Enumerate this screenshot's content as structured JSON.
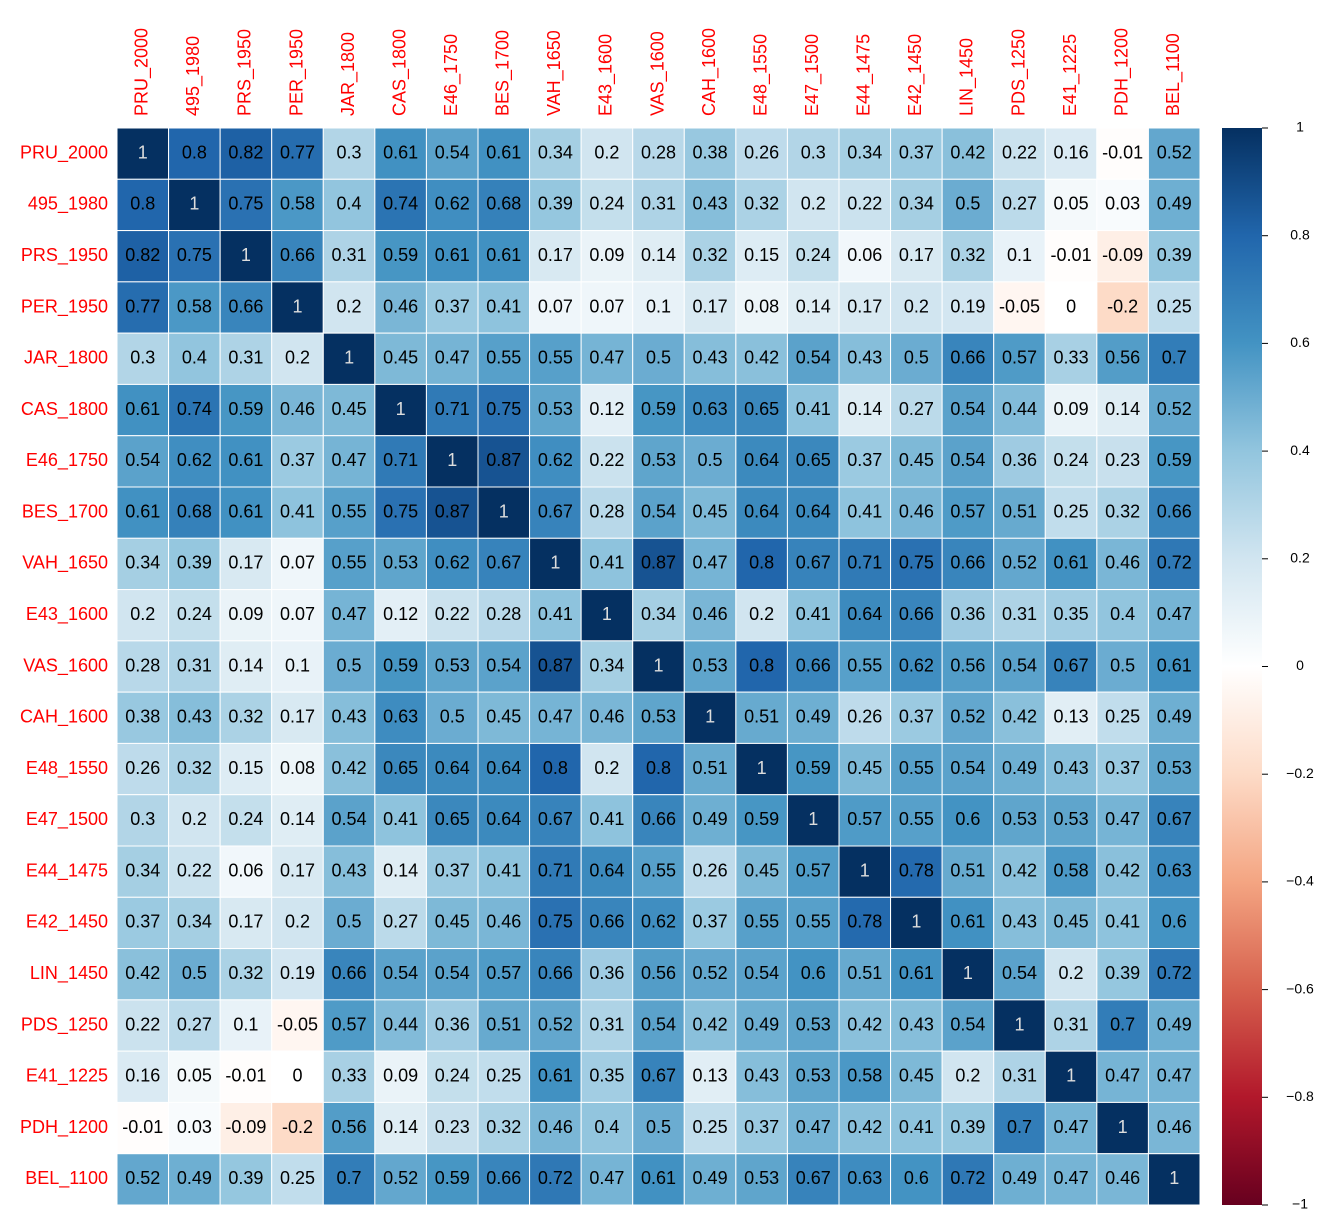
{
  "chart_data": {
    "type": "heatmap",
    "labels": [
      "PRU_2000",
      "495_1980",
      "PRS_1950",
      "PER_1950",
      "JAR_1800",
      "CAS_1800",
      "E46_1750",
      "BES_1700",
      "VAH_1650",
      "E43_1600",
      "VAS_1600",
      "CAH_1600",
      "E48_1550",
      "E47_1500",
      "E44_1475",
      "E42_1450",
      "LIN_1450",
      "PDS_1250",
      "E41_1225",
      "PDH_1200",
      "BEL_1100"
    ],
    "label_color": "#ff0000",
    "values": [
      [
        1,
        0.8,
        0.82,
        0.77,
        0.3,
        0.61,
        0.54,
        0.61,
        0.34,
        0.2,
        0.28,
        0.38,
        0.26,
        0.3,
        0.34,
        0.37,
        0.42,
        0.22,
        0.16,
        -0.01,
        0.52
      ],
      [
        0.8,
        1,
        0.75,
        0.58,
        0.4,
        0.74,
        0.62,
        0.68,
        0.39,
        0.24,
        0.31,
        0.43,
        0.32,
        0.2,
        0.22,
        0.34,
        0.5,
        0.27,
        0.05,
        0.03,
        0.49
      ],
      [
        0.82,
        0.75,
        1,
        0.66,
        0.31,
        0.59,
        0.61,
        0.61,
        0.17,
        0.09,
        0.14,
        0.32,
        0.15,
        0.24,
        0.06,
        0.17,
        0.32,
        0.1,
        -0.01,
        -0.09,
        0.39
      ],
      [
        0.77,
        0.58,
        0.66,
        1,
        0.2,
        0.46,
        0.37,
        0.41,
        0.07,
        0.07,
        0.1,
        0.17,
        0.08,
        0.14,
        0.17,
        0.2,
        0.19,
        -0.05,
        0,
        -0.2,
        0.25
      ],
      [
        0.3,
        0.4,
        0.31,
        0.2,
        1,
        0.45,
        0.47,
        0.55,
        0.55,
        0.47,
        0.5,
        0.43,
        0.42,
        0.54,
        0.43,
        0.5,
        0.66,
        0.57,
        0.33,
        0.56,
        0.7
      ],
      [
        0.61,
        0.74,
        0.59,
        0.46,
        0.45,
        1,
        0.71,
        0.75,
        0.53,
        0.12,
        0.59,
        0.63,
        0.65,
        0.41,
        0.14,
        0.27,
        0.54,
        0.44,
        0.09,
        0.14,
        0.52
      ],
      [
        0.54,
        0.62,
        0.61,
        0.37,
        0.47,
        0.71,
        1,
        0.87,
        0.62,
        0.22,
        0.53,
        0.5,
        0.64,
        0.65,
        0.37,
        0.45,
        0.54,
        0.36,
        0.24,
        0.23,
        0.59
      ],
      [
        0.61,
        0.68,
        0.61,
        0.41,
        0.55,
        0.75,
        0.87,
        1,
        0.67,
        0.28,
        0.54,
        0.45,
        0.64,
        0.64,
        0.41,
        0.46,
        0.57,
        0.51,
        0.25,
        0.32,
        0.66
      ],
      [
        0.34,
        0.39,
        0.17,
        0.07,
        0.55,
        0.53,
        0.62,
        0.67,
        1,
        0.41,
        0.87,
        0.47,
        0.8,
        0.67,
        0.71,
        0.75,
        0.66,
        0.52,
        0.61,
        0.46,
        0.72
      ],
      [
        0.2,
        0.24,
        0.09,
        0.07,
        0.47,
        0.12,
        0.22,
        0.28,
        0.41,
        1,
        0.34,
        0.46,
        0.2,
        0.41,
        0.64,
        0.66,
        0.36,
        0.31,
        0.35,
        0.4,
        0.47
      ],
      [
        0.28,
        0.31,
        0.14,
        0.1,
        0.5,
        0.59,
        0.53,
        0.54,
        0.87,
        0.34,
        1,
        0.53,
        0.8,
        0.66,
        0.55,
        0.62,
        0.56,
        0.54,
        0.67,
        0.5,
        0.61
      ],
      [
        0.38,
        0.43,
        0.32,
        0.17,
        0.43,
        0.63,
        0.5,
        0.45,
        0.47,
        0.46,
        0.53,
        1,
        0.51,
        0.49,
        0.26,
        0.37,
        0.52,
        0.42,
        0.13,
        0.25,
        0.49
      ],
      [
        0.26,
        0.32,
        0.15,
        0.08,
        0.42,
        0.65,
        0.64,
        0.64,
        0.8,
        0.2,
        0.8,
        0.51,
        1,
        0.59,
        0.45,
        0.55,
        0.54,
        0.49,
        0.43,
        0.37,
        0.53
      ],
      [
        0.3,
        0.2,
        0.24,
        0.14,
        0.54,
        0.41,
        0.65,
        0.64,
        0.67,
        0.41,
        0.66,
        0.49,
        0.59,
        1,
        0.57,
        0.55,
        0.6,
        0.53,
        0.53,
        0.47,
        0.67
      ],
      [
        0.34,
        0.22,
        0.06,
        0.17,
        0.43,
        0.14,
        0.37,
        0.41,
        0.71,
        0.64,
        0.55,
        0.26,
        0.45,
        0.57,
        1,
        0.78,
        0.51,
        0.42,
        0.58,
        0.42,
        0.63
      ],
      [
        0.37,
        0.34,
        0.17,
        0.2,
        0.5,
        0.27,
        0.45,
        0.46,
        0.75,
        0.66,
        0.62,
        0.37,
        0.55,
        0.55,
        0.78,
        1,
        0.61,
        0.43,
        0.45,
        0.41,
        0.6
      ],
      [
        0.42,
        0.5,
        0.32,
        0.19,
        0.66,
        0.54,
        0.54,
        0.57,
        0.66,
        0.36,
        0.56,
        0.52,
        0.54,
        0.6,
        0.51,
        0.61,
        1,
        0.54,
        0.2,
        0.39,
        0.72
      ],
      [
        0.22,
        0.27,
        0.1,
        -0.05,
        0.57,
        0.44,
        0.36,
        0.51,
        0.52,
        0.31,
        0.54,
        0.42,
        0.49,
        0.53,
        0.42,
        0.43,
        0.54,
        1,
        0.31,
        0.7,
        0.49
      ],
      [
        0.16,
        0.05,
        -0.01,
        0,
        0.33,
        0.09,
        0.24,
        0.25,
        0.61,
        0.35,
        0.67,
        0.13,
        0.43,
        0.53,
        0.58,
        0.45,
        0.2,
        0.31,
        1,
        0.47,
        0.47
      ],
      [
        -0.01,
        0.03,
        -0.09,
        -0.2,
        0.56,
        0.14,
        0.23,
        0.32,
        0.46,
        0.4,
        0.5,
        0.25,
        0.37,
        0.47,
        0.42,
        0.41,
        0.39,
        0.7,
        0.47,
        1,
        0.46
      ],
      [
        0.52,
        0.49,
        0.39,
        0.25,
        0.7,
        0.52,
        0.59,
        0.66,
        0.72,
        0.47,
        0.61,
        0.49,
        0.53,
        0.67,
        0.63,
        0.6,
        0.72,
        0.49,
        0.47,
        0.46,
        1
      ]
    ],
    "colorscale": [
      "#67001F",
      "#B2182B",
      "#D6604D",
      "#F4A582",
      "#FDDBC7",
      "#FFFFFF",
      "#D1E5F0",
      "#92C5DE",
      "#4393C3",
      "#2166AC",
      "#053061"
    ],
    "clim": [
      -1,
      1
    ],
    "cticks": [
      {
        "value": -1,
        "label": "−1"
      },
      {
        "value": -0.8,
        "label": "−0.8"
      },
      {
        "value": -0.6,
        "label": "−0.6"
      },
      {
        "value": -0.4,
        "label": "−0.4"
      },
      {
        "value": -0.2,
        "label": "−0.2"
      },
      0,
      0.2,
      0.4,
      0.6,
      0.8,
      1
    ]
  }
}
